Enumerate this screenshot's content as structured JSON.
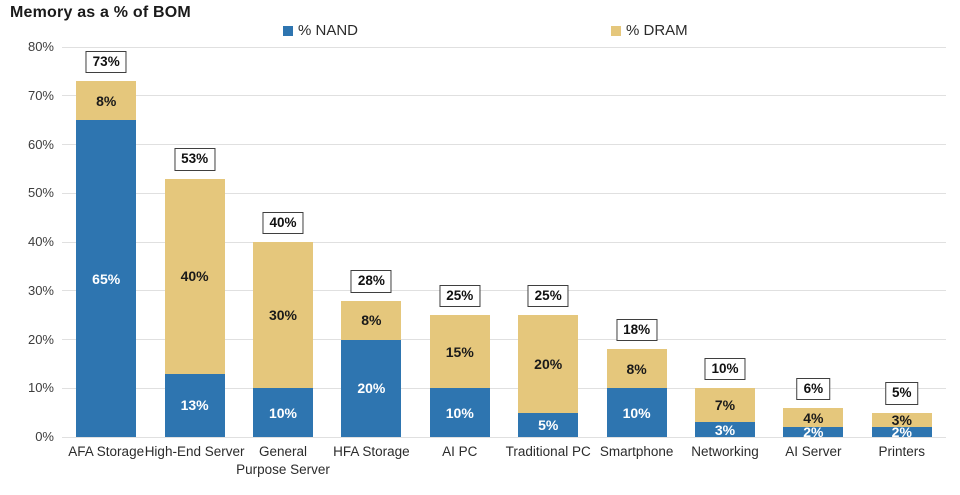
{
  "title": "Memory as a % of BOM",
  "colors": {
    "nand_blue": "#2E75B0",
    "dram_tan": "#E5C77C",
    "gridline": "#E0E0E0",
    "label_box_border": "#3F3F3F",
    "text_dark": "#1A1A1A"
  },
  "legend": {
    "nand_label": "% NAND",
    "dram_label": "% DRAM"
  },
  "chart_data": {
    "type": "bar",
    "stacked": true,
    "title": "Memory as a % of BOM",
    "xlabel": "",
    "ylabel": "",
    "ylim": [
      0,
      80
    ],
    "ytick_step": 10,
    "ytick_labels": [
      "0%",
      "10%",
      "20%",
      "30%",
      "40%",
      "50%",
      "60%",
      "70%",
      "80%"
    ],
    "grid": true,
    "legend_position": "top",
    "categories": [
      "AFA Storage",
      "High-End Server",
      "General Purpose Server",
      "HFA Storage",
      "AI PC",
      "Traditional PC",
      "Smartphone",
      "Networking",
      "AI Server",
      "Printers"
    ],
    "series": [
      {
        "name": "% NAND",
        "color": "#2E75B0",
        "values": [
          65,
          13,
          10,
          20,
          10,
          5,
          10,
          3,
          2,
          2
        ]
      },
      {
        "name": "% DRAM",
        "color": "#E5C77C",
        "values": [
          8,
          40,
          30,
          8,
          15,
          20,
          8,
          7,
          4,
          3
        ]
      }
    ],
    "totals": [
      73,
      53,
      40,
      28,
      25,
      25,
      18,
      10,
      6,
      5
    ]
  }
}
